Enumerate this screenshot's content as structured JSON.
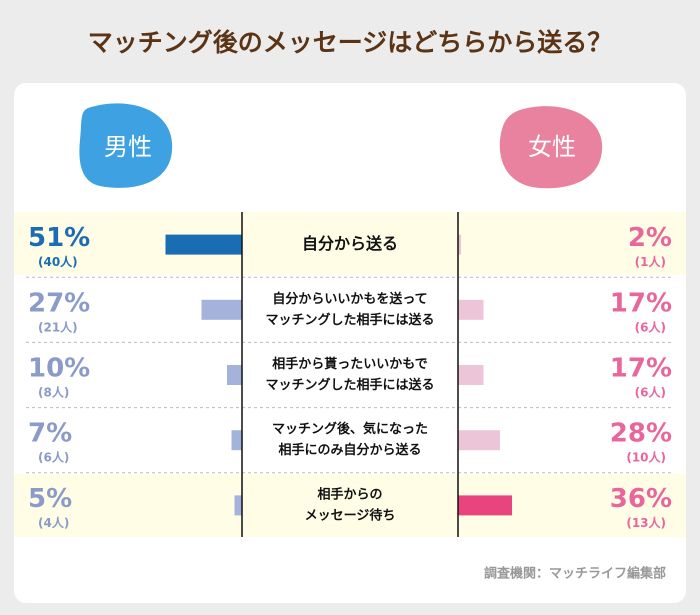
{
  "chart_data": {
    "type": "butterfly",
    "title": "マッチング後のメッセージはどちらから送る？",
    "categories": [
      [
        "自分から送る"
      ],
      [
        "自分からいいかもを送って",
        "マッチングした相手には送る"
      ],
      [
        "相手から貰ったいいかもで",
        "マッチングした相手には送る"
      ],
      [
        "マッチング後、気になった",
        "相手にのみ自分から送る"
      ],
      [
        "相手からの",
        "メッセージ待ち"
      ]
    ],
    "series": [
      {
        "name": "男性",
        "color": "#3ea1e2",
        "text_color": "#8a9bc9",
        "colors": [
          "#1a6db3",
          "#a3b3dc",
          "#a3b3dc",
          "#a3b3dc",
          "#a3b3dc"
        ],
        "values": [
          51,
          27,
          10,
          7,
          5
        ],
        "value_labels": [
          "51%",
          "27%",
          "10%",
          "7%",
          "5%"
        ],
        "count_labels": [
          "(40人)",
          "(21人)",
          "(8人)",
          "(6人)",
          "(4人)"
        ]
      },
      {
        "name": "女性",
        "color": "#e9829f",
        "text_color": "#e8669c",
        "colors": [
          "#ecc6d8",
          "#ecc6d8",
          "#ecc6d8",
          "#ecc6d8",
          "#e8457f"
        ],
        "values": [
          2,
          17,
          17,
          28,
          36
        ],
        "value_labels": [
          "2%",
          "17%",
          "17%",
          "28%",
          "36%"
        ],
        "count_labels": [
          "(1人)",
          "(6人)",
          "(6人)",
          "(10人)",
          "(13人)"
        ]
      }
    ],
    "source": "調査機関：マッチライフ編集部"
  }
}
